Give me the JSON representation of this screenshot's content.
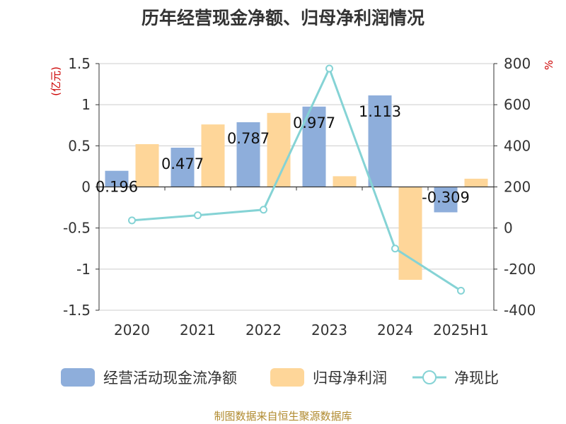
{
  "chart_data": {
    "type": "bar",
    "title": "历年经营现金净额、归母净利润情况",
    "categories": [
      "2020",
      "2021",
      "2022",
      "2023",
      "2024",
      "2025H1"
    ],
    "y_left": {
      "unit": "(亿元)",
      "range": [
        -1.5,
        1.5
      ],
      "ticks": [
        "1.5",
        "1",
        "0.5",
        "0",
        "-0.5",
        "-1",
        "-1.5"
      ],
      "tick_values": [
        1.5,
        1,
        0.5,
        0,
        -0.5,
        -1,
        -1.5
      ]
    },
    "y_right": {
      "unit": "%",
      "range": [
        -400,
        800
      ],
      "ticks": [
        "800",
        "600",
        "400",
        "200",
        "0",
        "-200",
        "-400"
      ],
      "tick_values": [
        800,
        600,
        400,
        200,
        0,
        -200,
        -400
      ]
    },
    "grid": true,
    "legend_position": "bottom",
    "series": [
      {
        "name": "经营活动现金流净额",
        "type": "bar",
        "axis": "left",
        "color": "#8eaedb",
        "values": [
          0.196,
          0.477,
          0.787,
          0.977,
          1.113,
          -0.309
        ],
        "labels": [
          "0.196",
          "0.477",
          "0.787",
          "0.977",
          "1.113",
          "-0.309"
        ]
      },
      {
        "name": "归母净利润",
        "type": "bar",
        "axis": "left",
        "color": "#fed699",
        "values": [
          0.52,
          0.76,
          0.9,
          0.13,
          -1.13,
          0.1
        ]
      },
      {
        "name": "净现比",
        "type": "line",
        "axis": "right",
        "color": "#85d3d5",
        "values": [
          37,
          62,
          89,
          776,
          -100,
          -305
        ]
      }
    ]
  },
  "source": "制图数据来自恒生聚源数据库"
}
